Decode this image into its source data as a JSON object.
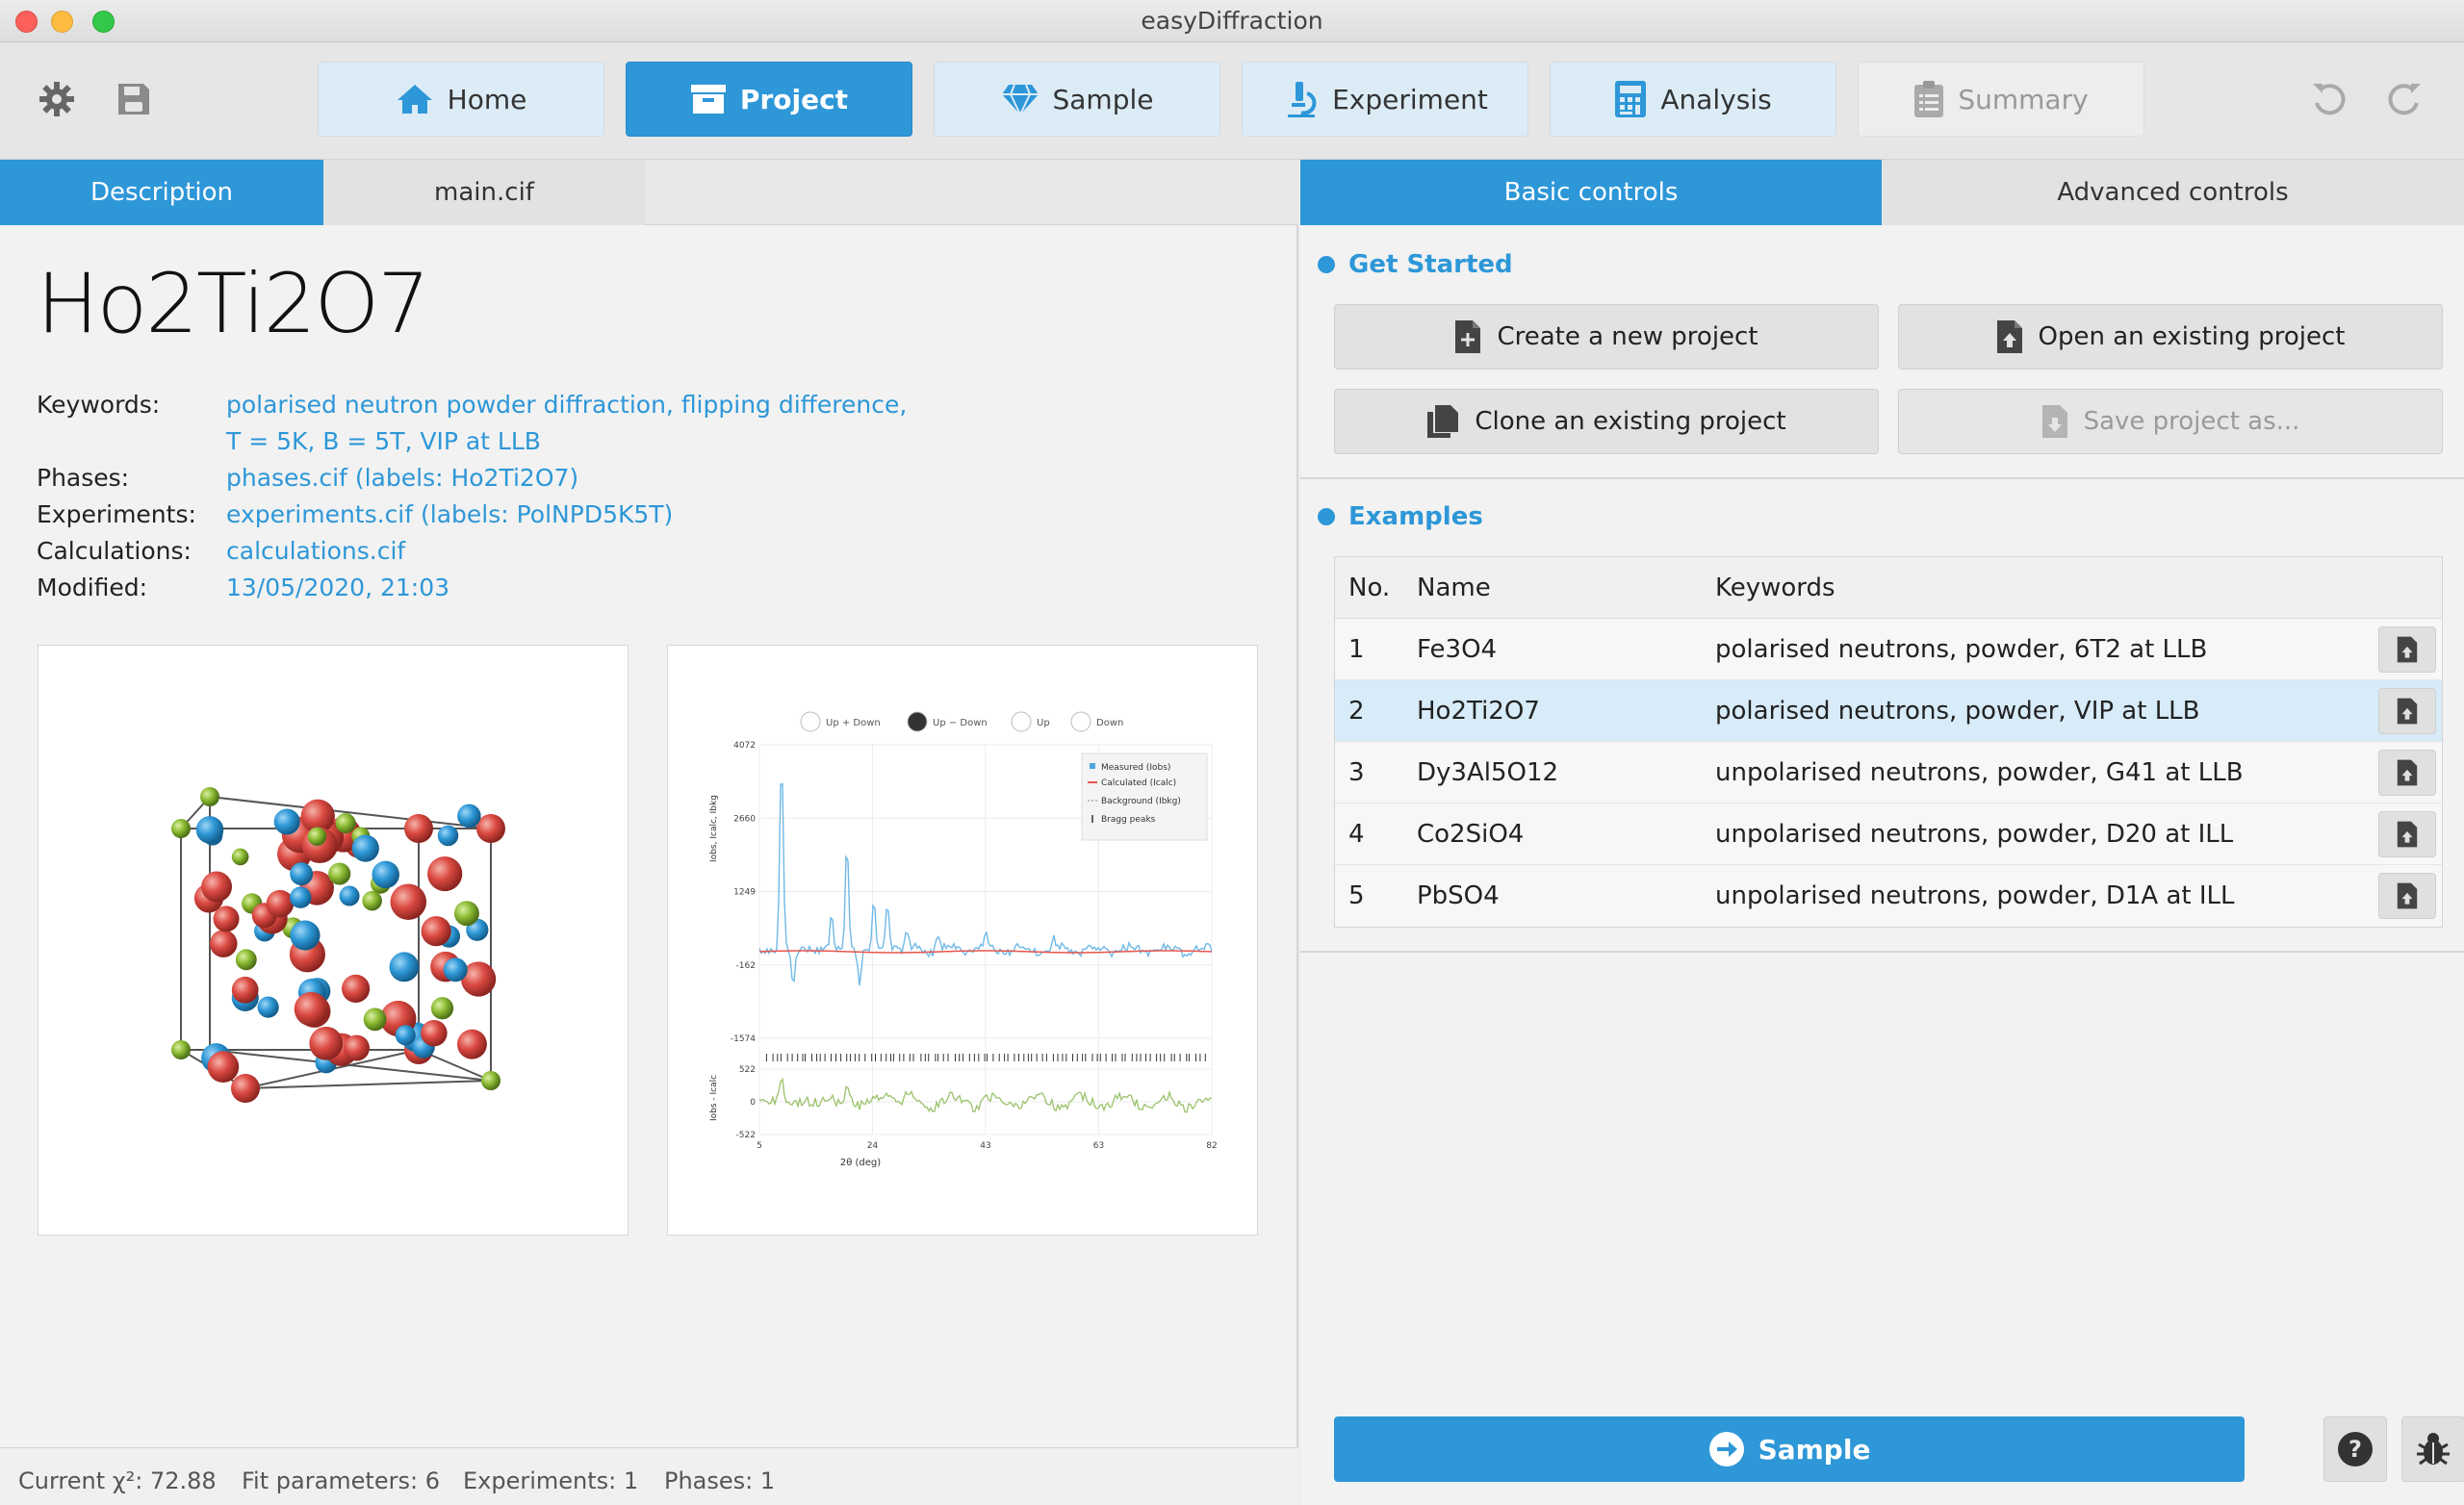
{
  "window": {
    "title": "easyDiffraction"
  },
  "toolbar": {
    "tabs": [
      {
        "label": "Home",
        "icon": "home-icon"
      },
      {
        "label": "Project",
        "icon": "archive-icon"
      },
      {
        "label": "Sample",
        "icon": "gem-icon"
      },
      {
        "label": "Experiment",
        "icon": "microscope-icon"
      },
      {
        "label": "Analysis",
        "icon": "calculator-icon"
      },
      {
        "label": "Summary",
        "icon": "clipboard-icon"
      }
    ],
    "active_tab": "Project"
  },
  "left": {
    "tabs": [
      "Description",
      "main.cif"
    ],
    "project_title": "Ho2Ti2O7",
    "meta": {
      "keywords_label": "Keywords:",
      "keywords_line1": "polarised neutron powder diffraction, flipping difference,",
      "keywords_line2": "T = 5K, B = 5T, VIP at LLB",
      "phases_label": "Phases:",
      "phases_value": "phases.cif (labels: Ho2Ti2O7)",
      "experiments_label": "Experiments:",
      "experiments_value": "experiments.cif (labels: PolNPD5K5T)",
      "calculations_label": "Calculations:",
      "calculations_value": "calculations.cif",
      "modified_label": "Modified:",
      "modified_value": "13/05/2020, 21:03"
    },
    "plot_thumb": {
      "modes": [
        "Up + Down",
        "Up − Down",
        "Up",
        "Down"
      ],
      "legend": [
        "Measured (Iobs)",
        "Calculated (Icalc)",
        "Background (Ibkg)",
        "Bragg peaks"
      ],
      "yticks": [
        "4072",
        "2660",
        "1249",
        "-162",
        "-1574"
      ],
      "diff_yticks": [
        "522",
        "0",
        "-522"
      ],
      "xticks": [
        "5",
        "24",
        "43",
        "63",
        "82"
      ],
      "xlabel": "2θ (deg)",
      "ylabel": "Iobs, Icalc, Ibkg",
      "diff_ylabel": "Iobs - Icalc"
    }
  },
  "status": {
    "chi_label": "Current χ²: 72.88",
    "fit_params": "Fit parameters: 6",
    "experiments": "Experiments: 1",
    "phases": "Phases: 1"
  },
  "right": {
    "tabs": [
      "Basic controls",
      "Advanced controls"
    ],
    "get_started": {
      "title": "Get Started",
      "create": "Create a new project",
      "open": "Open an existing project",
      "clone": "Clone an existing project",
      "save_as": "Save project as..."
    },
    "examples": {
      "title": "Examples",
      "headers": [
        "No.",
        "Name",
        "Keywords"
      ],
      "rows": [
        {
          "no": "1",
          "name": "Fe3O4",
          "keywords": "polarised neutrons, powder, 6T2 at LLB"
        },
        {
          "no": "2",
          "name": "Ho2Ti2O7",
          "keywords": "polarised neutrons, powder, VIP at LLB"
        },
        {
          "no": "3",
          "name": "Dy3Al5O12",
          "keywords": "unpolarised neutrons, powder, G41 at LLB"
        },
        {
          "no": "4",
          "name": "Co2SiO4",
          "keywords": "unpolarised neutrons, powder, D20 at ILL"
        },
        {
          "no": "5",
          "name": "PbSO4",
          "keywords": "unpolarised neutrons, powder, D1A at ILL"
        }
      ],
      "selected_row": 2
    },
    "next_button": "Sample"
  },
  "colors": {
    "accent": "#2d97d8",
    "selected_row": "#d7ebf8",
    "calc_line": "#e8554e",
    "diff_line": "#9bc26b"
  }
}
